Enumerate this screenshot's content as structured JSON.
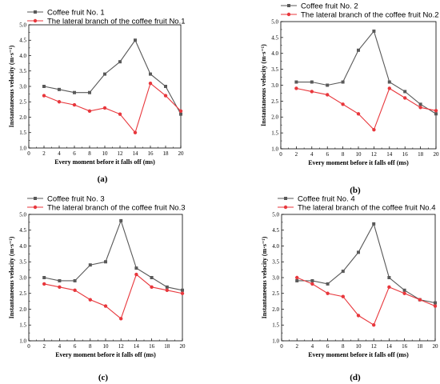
{
  "chart_data": [
    {
      "type": "line",
      "panel_label": "(a)",
      "xlabel": "Every moment before it falls off (ms)",
      "ylabel": "Instantaneous velocity (m·s⁻¹)",
      "x": [
        2,
        4,
        6,
        8,
        10,
        12,
        14,
        16,
        18,
        20
      ],
      "xlim": [
        0,
        20
      ],
      "ylim": [
        1.0,
        5.0
      ],
      "xticks": [
        "0",
        "2",
        "4",
        "6",
        "8",
        "10",
        "12",
        "14",
        "16",
        "18",
        "20"
      ],
      "yticks": [
        "1.0",
        "1.5",
        "2.0",
        "2.5",
        "3.0",
        "3.5",
        "4.0",
        "4.5",
        "5.0"
      ],
      "legend_position": "top-left",
      "series": [
        {
          "name": "Coffee fruit No. 1",
          "color": "#595959",
          "marker": "square",
          "values": [
            3.0,
            2.9,
            2.8,
            2.8,
            3.4,
            3.8,
            4.5,
            3.4,
            3.0,
            2.1
          ]
        },
        {
          "name": "The lateral branch of the coffee fruit No.1",
          "color": "#e8373c",
          "marker": "circle",
          "values": [
            2.7,
            2.5,
            2.4,
            2.2,
            2.3,
            2.1,
            1.5,
            3.1,
            2.7,
            2.2
          ]
        }
      ]
    },
    {
      "type": "line",
      "panel_label": "(b)",
      "xlabel": "Every moment before it falls off (ms)",
      "ylabel": "Instantaneous velocity (m·s⁻¹)",
      "x": [
        2,
        4,
        6,
        8,
        10,
        12,
        14,
        16,
        18,
        20
      ],
      "xlim": [
        0,
        20
      ],
      "ylim": [
        1.0,
        5.0
      ],
      "xticks": [
        "0",
        "2",
        "4",
        "6",
        "8",
        "10",
        "12",
        "14",
        "16",
        "18",
        "20"
      ],
      "yticks": [
        "1.0",
        "1.5",
        "2.0",
        "2.5",
        "3.0",
        "3.5",
        "4.0",
        "4.5",
        "5.0"
      ],
      "legend_position": "top-left",
      "series": [
        {
          "name": "Coffee fruit No. 2",
          "color": "#595959",
          "marker": "square",
          "values": [
            3.1,
            3.1,
            3.0,
            3.1,
            4.1,
            4.7,
            3.1,
            2.8,
            2.4,
            2.1
          ]
        },
        {
          "name": "The lateral branch of the coffee fruit No.2",
          "color": "#e8373c",
          "marker": "circle",
          "values": [
            2.9,
            2.8,
            2.7,
            2.4,
            2.1,
            1.6,
            2.9,
            2.6,
            2.3,
            2.2
          ]
        }
      ]
    },
    {
      "type": "line",
      "panel_label": "(c)",
      "xlabel": "Every moment before it falls off (ms)",
      "ylabel": "Instantaneous velocity (m·s⁻¹)",
      "x": [
        2,
        4,
        6,
        8,
        10,
        12,
        14,
        16,
        18,
        20
      ],
      "xlim": [
        0,
        20
      ],
      "ylim": [
        1.0,
        5.0
      ],
      "xticks": [
        "0",
        "2",
        "4",
        "6",
        "8",
        "10",
        "12",
        "14",
        "16",
        "18",
        "20"
      ],
      "yticks": [
        "1.0",
        "1.5",
        "2.0",
        "2.5",
        "3.0",
        "3.5",
        "4.0",
        "4.5",
        "5.0"
      ],
      "legend_position": "top-left",
      "series": [
        {
          "name": "Coffee fruit No. 3",
          "color": "#595959",
          "marker": "square",
          "values": [
            3.0,
            2.9,
            2.9,
            3.4,
            3.5,
            4.8,
            3.3,
            3.0,
            2.7,
            2.6
          ]
        },
        {
          "name": "The lateral branch of the coffee fruit No.3",
          "color": "#e8373c",
          "marker": "circle",
          "values": [
            2.8,
            2.7,
            2.6,
            2.3,
            2.1,
            1.7,
            3.1,
            2.7,
            2.6,
            2.5
          ]
        }
      ]
    },
    {
      "type": "line",
      "panel_label": "(d)",
      "xlabel": "Every moment before it falls off (ms)",
      "ylabel": "Instantaneous velocity (m·s⁻¹)",
      "x": [
        2,
        4,
        6,
        8,
        10,
        12,
        14,
        16,
        18,
        20
      ],
      "xlim": [
        0,
        20
      ],
      "ylim": [
        1.0,
        5.0
      ],
      "xticks": [
        "0",
        "2",
        "4",
        "6",
        "8",
        "10",
        "12",
        "14",
        "16",
        "18",
        "20"
      ],
      "yticks": [
        "1.0",
        "1.5",
        "2.0",
        "2.5",
        "3.0",
        "3.5",
        "4.0",
        "4.5",
        "5.0"
      ],
      "legend_position": "top-left",
      "series": [
        {
          "name": "Coffee fruit No. 4",
          "color": "#595959",
          "marker": "square",
          "values": [
            2.9,
            2.9,
            2.8,
            3.2,
            3.8,
            4.7,
            3.0,
            2.6,
            2.3,
            2.2
          ]
        },
        {
          "name": "The lateral branch of the coffee fruit No.4",
          "color": "#e8373c",
          "marker": "circle",
          "values": [
            3.0,
            2.8,
            2.5,
            2.4,
            1.8,
            1.5,
            2.7,
            2.5,
            2.3,
            2.1
          ]
        }
      ]
    }
  ]
}
